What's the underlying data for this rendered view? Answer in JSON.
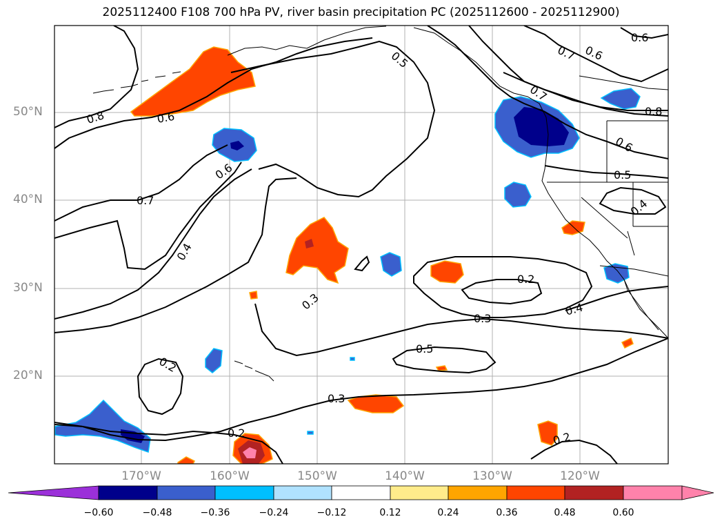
{
  "title": "2025112400 F108 700 hPa PV, river basin precipitation PC (2025112600 - 2025112900)",
  "map": {
    "lat_labels": [
      "50°N",
      "40°N",
      "30°N",
      "20°N"
    ],
    "lon_labels": [
      "170°W",
      "160°W",
      "150°W",
      "140°W",
      "130°W",
      "120°W"
    ],
    "contour_labels": [
      "0.5",
      "0.7",
      "0.6",
      "0.6",
      "0.8",
      "0.6",
      "0.8",
      "0.7",
      "0.6",
      "0.6",
      "0.5",
      "0.7",
      "0.4",
      "0.4",
      "0.3",
      "0.2",
      "0.3",
      "0.4",
      "0.5",
      "0.2",
      "0.3",
      "0.2",
      "0.2"
    ]
  },
  "colorbar": {
    "tick_labels": [
      "−0.60",
      "−0.48",
      "−0.36",
      "−0.24",
      "−0.12",
      "0.12",
      "0.24",
      "0.36",
      "0.48",
      "0.60"
    ],
    "colors": [
      "#9b30d9",
      "#00008b",
      "#3a5fcd",
      "#00bfff",
      "#b0e2ff",
      "#ffffff",
      "#ffec8b",
      "#ffa500",
      "#ff4500",
      "#b22222",
      "#ff82ab"
    ]
  }
}
